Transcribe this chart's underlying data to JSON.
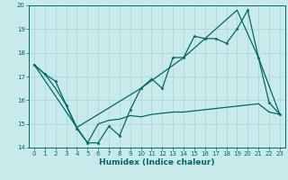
{
  "xlabel": "Humidex (Indice chaleur)",
  "bg_color": "#c8eaea",
  "grid_color": "#afd8d8",
  "line_color": "#006868",
  "xlim": [
    -0.5,
    23.5
  ],
  "ylim": [
    14,
    20
  ],
  "xticks": [
    0,
    1,
    2,
    3,
    4,
    5,
    6,
    7,
    8,
    9,
    10,
    11,
    12,
    13,
    14,
    15,
    16,
    17,
    18,
    19,
    20,
    21,
    22,
    23
  ],
  "yticks": [
    14,
    15,
    16,
    17,
    18,
    19,
    20
  ],
  "line1_x": [
    0,
    1,
    2,
    3,
    4,
    5,
    6,
    7,
    8,
    9,
    10,
    11,
    12,
    13,
    14,
    15,
    16,
    17,
    18,
    19,
    20,
    21,
    22,
    23
  ],
  "line1_y": [
    17.5,
    17.1,
    16.8,
    15.8,
    14.8,
    14.2,
    14.2,
    14.9,
    14.5,
    15.6,
    16.5,
    16.9,
    16.5,
    17.8,
    17.8,
    18.7,
    18.6,
    18.6,
    18.4,
    19.0,
    19.8,
    17.8,
    15.9,
    15.4
  ],
  "line2_x": [
    0,
    1,
    2,
    3,
    4,
    5,
    6,
    7,
    8,
    9,
    10,
    11,
    12,
    13,
    14,
    15,
    16,
    17,
    18,
    19,
    20,
    21,
    22,
    23
  ],
  "line2_y": [
    17.5,
    17.1,
    16.5,
    15.8,
    14.85,
    14.2,
    15.0,
    15.15,
    15.2,
    15.35,
    15.3,
    15.4,
    15.45,
    15.5,
    15.5,
    15.55,
    15.6,
    15.65,
    15.7,
    15.75,
    15.8,
    15.85,
    15.5,
    15.4
  ],
  "line3_x": [
    0,
    4,
    10,
    14,
    19,
    21,
    23
  ],
  "line3_y": [
    17.5,
    14.85,
    16.5,
    17.8,
    19.8,
    17.8,
    15.4
  ]
}
